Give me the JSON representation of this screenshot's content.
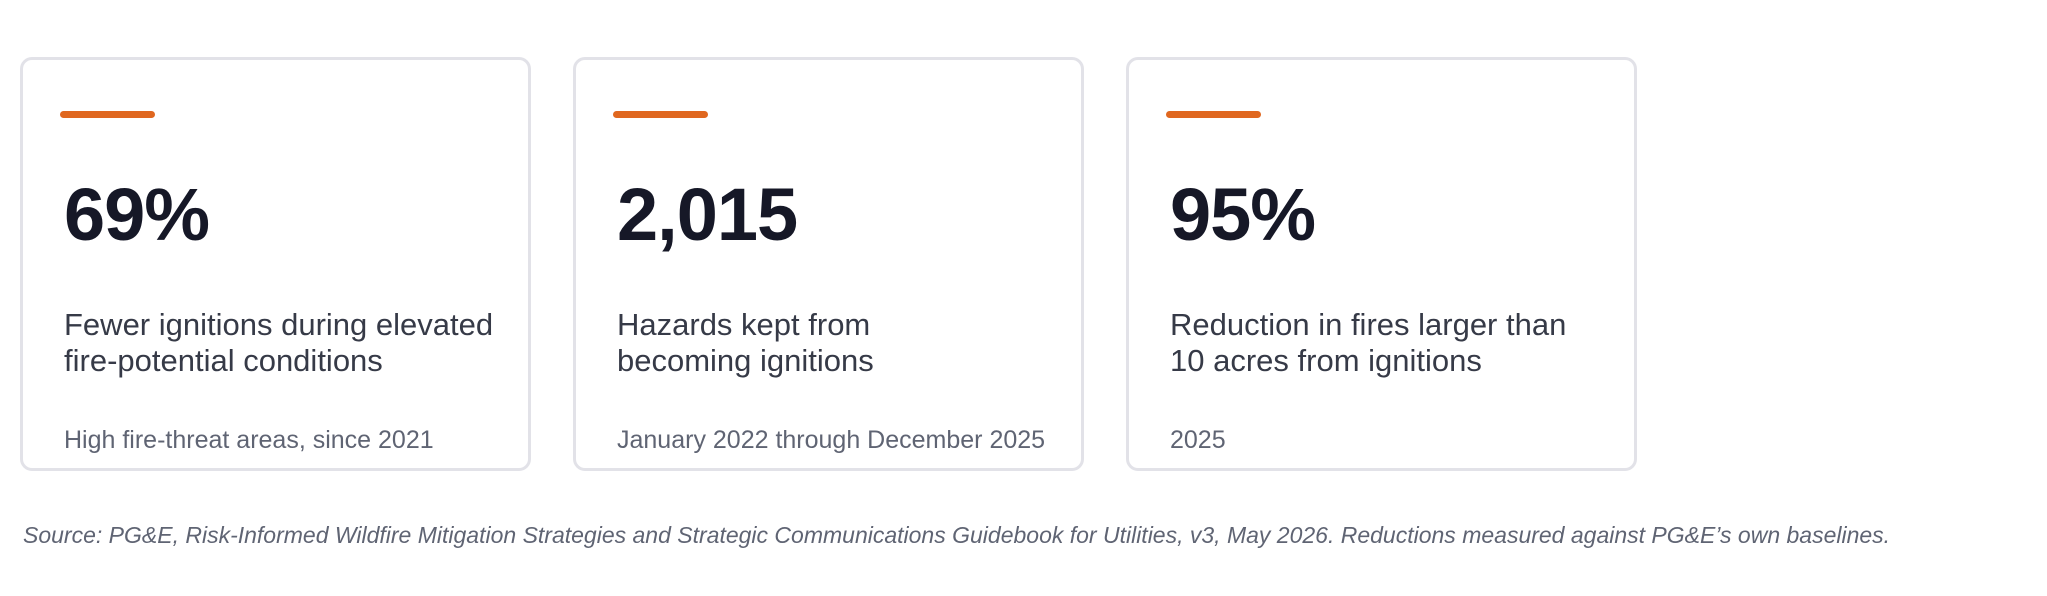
{
  "cards": [
    {
      "value": "69%",
      "desc_line1": "Fewer ignitions during elevated",
      "desc_line2": "fire-potential conditions",
      "footnote": "High fire-threat areas, since 2021"
    },
    {
      "value": "2,015",
      "desc_line1": "Hazards kept from",
      "desc_line2": "becoming ignitions",
      "footnote": "January 2022 through December 2025"
    },
    {
      "value": "95%",
      "desc_line1": "Reduction in fires larger than",
      "desc_line2": "10 acres from ignitions",
      "footnote": "2025"
    }
  ],
  "source": "Source: PG&E, Risk-Informed Wildfire Mitigation Strategies and Strategic Communications Guidebook for Utilities, v3, May 2026. Reductions measured against PG&E’s own baselines.",
  "colors": {
    "accent": "#e0671f",
    "stat_text": "#161827",
    "card_border": "#e2e2e8"
  }
}
